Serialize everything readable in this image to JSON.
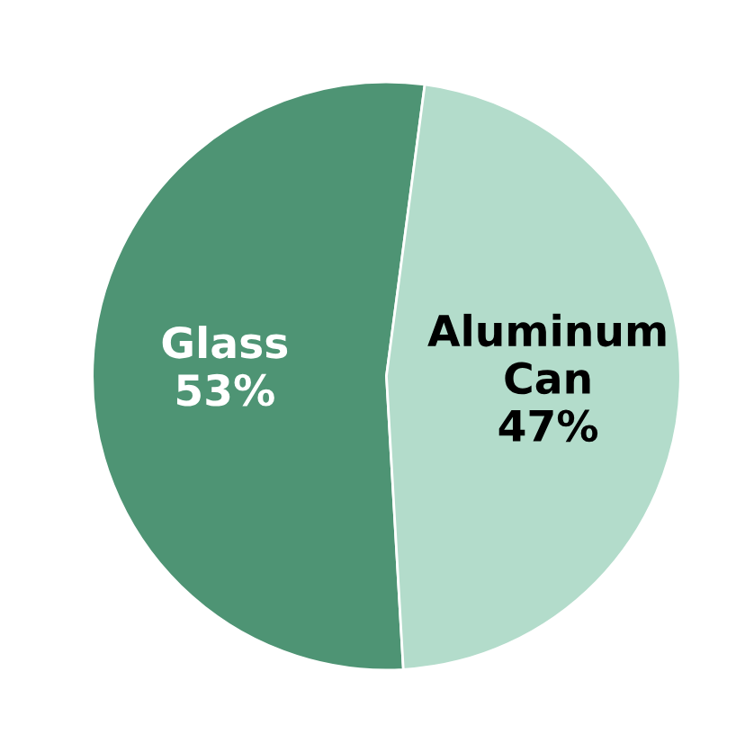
{
  "chart_data": {
    "type": "pie",
    "categories": [
      "Glass",
      "Aluminum Can"
    ],
    "values": [
      53,
      47
    ],
    "colors": [
      "#4e9474",
      "#b3dccb"
    ],
    "value_labels": [
      "53%",
      "47%"
    ]
  }
}
